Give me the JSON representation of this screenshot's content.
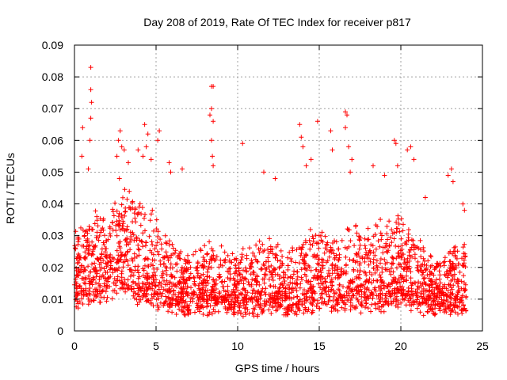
{
  "chart_data": {
    "type": "scatter",
    "title": "Day 208 of 2019, Rate Of TEC Index for receiver p817",
    "xlabel": "GPS time / hours",
    "ylabel": "ROTI / TECUs",
    "xlim": [
      0,
      25
    ],
    "ylim": [
      0,
      0.09
    ],
    "xticks": [
      0,
      5,
      10,
      15,
      20,
      25
    ],
    "yticks": [
      0,
      0.01,
      0.02,
      0.03,
      0.04,
      0.05,
      0.06,
      0.07,
      0.08,
      0.09
    ],
    "xtick_labels": [
      "0",
      "5",
      "10",
      "15",
      "20",
      "25"
    ],
    "ytick_labels": [
      "0",
      "0.01",
      "0.02",
      "0.03",
      "0.04",
      "0.05",
      "0.06",
      "0.07",
      "0.08",
      "0.09"
    ],
    "grid": true,
    "marker": "+",
    "color": "#ff0000",
    "series": [
      {
        "name": "ROTI",
        "points": [
          [
            1.0,
            0.083
          ],
          [
            1.0,
            0.076
          ],
          [
            1.05,
            0.072
          ],
          [
            1.0,
            0.067
          ],
          [
            0.95,
            0.06
          ],
          [
            0.5,
            0.064
          ],
          [
            0.45,
            0.055
          ],
          [
            0.85,
            0.051
          ],
          [
            2.8,
            0.063
          ],
          [
            2.7,
            0.06
          ],
          [
            2.9,
            0.058
          ],
          [
            3.05,
            0.057
          ],
          [
            3.3,
            0.053
          ],
          [
            2.6,
            0.055
          ],
          [
            2.75,
            0.048
          ],
          [
            3.9,
            0.057
          ],
          [
            4.3,
            0.065
          ],
          [
            4.5,
            0.062
          ],
          [
            4.4,
            0.058
          ],
          [
            4.2,
            0.055
          ],
          [
            4.7,
            0.054
          ],
          [
            5.2,
            0.063
          ],
          [
            5.1,
            0.06
          ],
          [
            5.8,
            0.053
          ],
          [
            5.9,
            0.05
          ],
          [
            6.6,
            0.051
          ],
          [
            8.5,
            0.077
          ],
          [
            8.4,
            0.077
          ],
          [
            8.4,
            0.07
          ],
          [
            8.3,
            0.068
          ],
          [
            8.5,
            0.066
          ],
          [
            8.4,
            0.06
          ],
          [
            8.45,
            0.055
          ],
          [
            8.5,
            0.052
          ],
          [
            10.3,
            0.059
          ],
          [
            11.6,
            0.05
          ],
          [
            12.3,
            0.048
          ],
          [
            13.8,
            0.065
          ],
          [
            13.9,
            0.061
          ],
          [
            14.0,
            0.058
          ],
          [
            14.9,
            0.066
          ],
          [
            14.5,
            0.054
          ],
          [
            14.2,
            0.052
          ],
          [
            15.7,
            0.063
          ],
          [
            15.8,
            0.057
          ],
          [
            16.6,
            0.069
          ],
          [
            16.7,
            0.068
          ],
          [
            16.6,
            0.064
          ],
          [
            16.8,
            0.058
          ],
          [
            17.0,
            0.054
          ],
          [
            16.9,
            0.05
          ],
          [
            18.3,
            0.052
          ],
          [
            19.0,
            0.049
          ],
          [
            19.6,
            0.06
          ],
          [
            19.7,
            0.059
          ],
          [
            19.8,
            0.052
          ],
          [
            20.4,
            0.057
          ],
          [
            20.6,
            0.058
          ],
          [
            20.8,
            0.054
          ],
          [
            21.5,
            0.042
          ],
          [
            22.9,
            0.049
          ],
          [
            23.1,
            0.051
          ],
          [
            23.2,
            0.047
          ],
          [
            23.8,
            0.04
          ],
          [
            23.9,
            0.038
          ]
        ],
        "density_profile": {
          "hours": [
            0,
            1,
            2,
            3,
            4,
            5,
            6,
            7,
            8,
            9,
            10,
            11,
            12,
            13,
            14,
            15,
            16,
            17,
            18,
            19,
            20,
            21,
            22,
            23,
            24
          ],
          "median": [
            0.016,
            0.018,
            0.02,
            0.024,
            0.02,
            0.018,
            0.014,
            0.012,
            0.014,
            0.013,
            0.012,
            0.013,
            0.014,
            0.013,
            0.015,
            0.016,
            0.015,
            0.016,
            0.016,
            0.017,
            0.018,
            0.014,
            0.012,
            0.013,
            0.014
          ],
          "spread": [
            0.012,
            0.016,
            0.016,
            0.02,
            0.018,
            0.016,
            0.012,
            0.01,
            0.012,
            0.011,
            0.01,
            0.012,
            0.012,
            0.011,
            0.014,
            0.014,
            0.013,
            0.015,
            0.014,
            0.016,
            0.016,
            0.012,
            0.008,
            0.011,
            0.012
          ]
        }
      }
    ]
  }
}
